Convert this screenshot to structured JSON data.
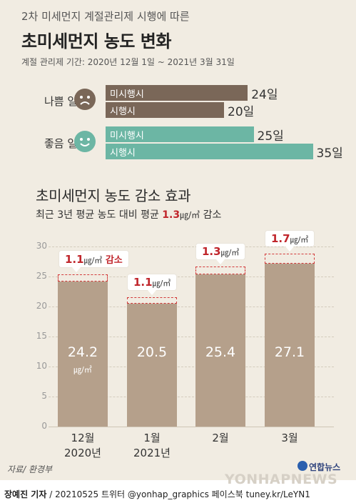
{
  "header": {
    "subtitle": "2차 미세먼지 계절관리제 시행에 따른",
    "title": "초미세먼지 농도 변화",
    "period": "계절 관리제 기간: 2020년 12월 1일 ~ 2021년 3월 31일"
  },
  "colors": {
    "bad_bar": "#7a6758",
    "good_bar": "#6cb6a4",
    "column": "#b5a08b",
    "highlight": "#c0262c",
    "panel": "#f1ece2"
  },
  "chart_data": [
    {
      "type": "bar",
      "orientation": "horizontal",
      "categories": [
        "나쁨 일수",
        "좋음 일수"
      ],
      "series": [
        {
          "name": "미시행시",
          "values": [
            24,
            25
          ]
        },
        {
          "name": "시행시",
          "values": [
            20,
            35
          ]
        }
      ],
      "value_labels": {
        "bad_not_applied": "24일",
        "bad_applied": "20일",
        "good_not_applied": "25일",
        "good_applied": "35일"
      },
      "icons": {
        "bad": "sad-face-icon",
        "good": "smile-face-icon"
      }
    },
    {
      "type": "bar",
      "title": "초미세먼지 농도 감소 효과",
      "subtitle_prefix": "최근 3년 평균 농도 대비 평균",
      "subtitle_value": "1.3",
      "subtitle_unit": "㎍/㎥",
      "subtitle_suffix": "감소",
      "categories": [
        "12월\n2020년",
        "1월\n2021년",
        "2월",
        "3월"
      ],
      "category_lines": [
        [
          "12월",
          "2020년"
        ],
        [
          "1월",
          "2021년"
        ],
        [
          "2월",
          ""
        ],
        [
          "3월",
          ""
        ]
      ],
      "values": [
        24.2,
        20.5,
        25.4,
        27.1
      ],
      "value_labels": [
        "24.2",
        "20.5",
        "25.4",
        "27.1"
      ],
      "first_bar_unit": "㎍/㎥",
      "reductions": [
        1.1,
        1.1,
        1.3,
        1.7
      ],
      "reduction_labels": [
        "1.1",
        "1.1",
        "1.3",
        "1.7"
      ],
      "reduction_unit": "㎍/㎥",
      "reduction_extra": [
        "감소",
        "",
        "",
        ""
      ],
      "yticks": [
        "0",
        "5",
        "10",
        "15",
        "20",
        "25",
        "30"
      ],
      "ylim": [
        0,
        30
      ]
    }
  ],
  "footer": {
    "source": "자료/ 환경부",
    "logo": "연합뉴스",
    "watermark": "YONHAPNEWS",
    "credit_name": "장예진 기자",
    "credit_rest": " / 20210525  트위터 @yonhap_graphics  페이스북 tuney.kr/LeYN1"
  }
}
